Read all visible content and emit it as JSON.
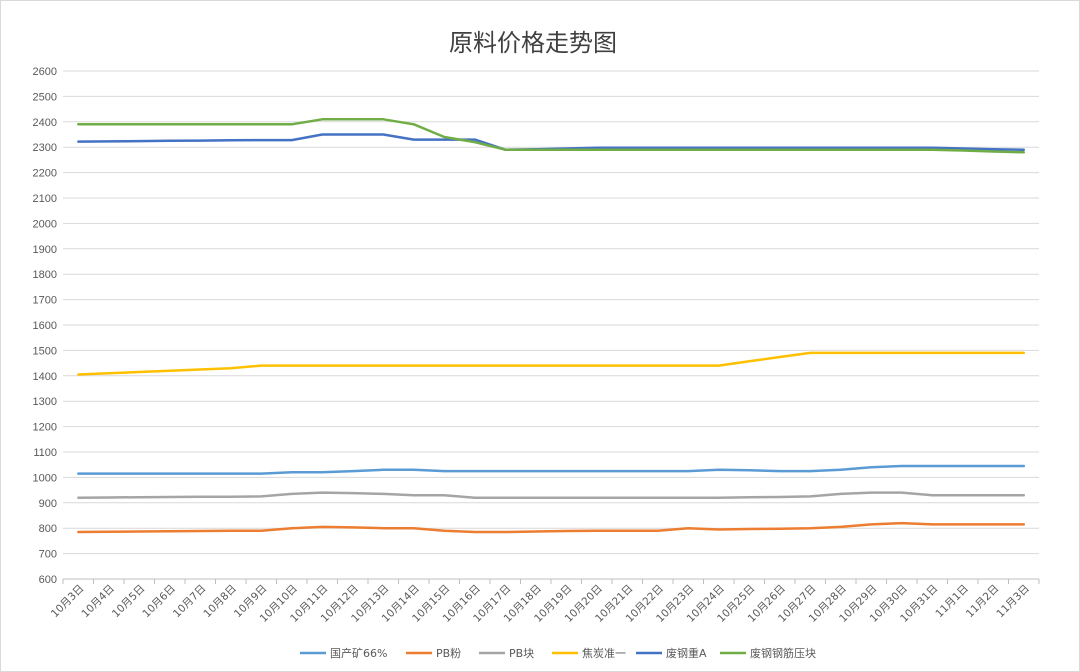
{
  "chart_data": {
    "type": "line",
    "title": "原料价格走势图",
    "ylim": [
      600,
      2600
    ],
    "yticks": [
      600,
      700,
      800,
      900,
      1000,
      1100,
      1200,
      1300,
      1400,
      1500,
      1600,
      1700,
      1800,
      1900,
      2000,
      2100,
      2200,
      2300,
      2400,
      2500,
      2600
    ],
    "grid": true,
    "legend": "bottom",
    "categories": [
      "10月3日",
      "10月4日",
      "10月5日",
      "10月6日",
      "10月7日",
      "10月8日",
      "10月9日",
      "10月10日",
      "10月11日",
      "10月12日",
      "10月13日",
      "10月14日",
      "10月15日",
      "10月16日",
      "10月17日",
      "10月18日",
      "10月19日",
      "10月20日",
      "10月21日",
      "10月22日",
      "10月23日",
      "10月24日",
      "10月25日",
      "10月26日",
      "10月27日",
      "10月28日",
      "10月29日",
      "10月30日",
      "10月31日",
      "11月1日",
      "11月2日",
      "11月3日"
    ],
    "series": [
      {
        "name": "国产矿66%",
        "color": "#5b9bd5",
        "values": [
          1015,
          1015,
          1015,
          1015,
          1015,
          1015,
          1015,
          1020,
          1020,
          1025,
          1030,
          1030,
          1025,
          1025,
          1025,
          1025,
          1025,
          1025,
          1025,
          1025,
          1025,
          1030,
          1028,
          1025,
          1025,
          1030,
          1040,
          1045,
          1045,
          1045,
          1045,
          1045
        ]
      },
      {
        "name": "PB粉",
        "color": "#ed7d31",
        "values": [
          785,
          786,
          787,
          788,
          789,
          790,
          790,
          800,
          805,
          803,
          800,
          800,
          790,
          785,
          785,
          787,
          789,
          790,
          790,
          790,
          800,
          795,
          797,
          798,
          800,
          805,
          815,
          820,
          815,
          815,
          815,
          815
        ]
      },
      {
        "name": "PB块",
        "color": "#a5a5a5",
        "values": [
          920,
          921,
          922,
          923,
          924,
          924,
          925,
          935,
          940,
          938,
          935,
          930,
          930,
          920,
          920,
          920,
          920,
          920,
          920,
          920,
          920,
          920,
          922,
          923,
          925,
          935,
          940,
          940,
          930,
          930,
          930,
          930
        ]
      },
      {
        "name": "焦炭准一",
        "color": "#ffc000",
        "values": [
          1405,
          1410,
          1415,
          1420,
          1425,
          1430,
          1440,
          1440,
          1440,
          1440,
          1440,
          1440,
          1440,
          1440,
          1440,
          1440,
          1440,
          1440,
          1440,
          1440,
          1440,
          1440,
          1457,
          1474,
          1490,
          1490,
          1490,
          1490,
          1490,
          1490,
          1490,
          1490
        ]
      },
      {
        "name": "废钢重A",
        "color": "#4472c4",
        "values": [
          2322,
          2323,
          2324,
          2325,
          2326,
          2327,
          2328,
          2328,
          2350,
          2350,
          2350,
          2330,
          2330,
          2330,
          2290,
          2292,
          2295,
          2298,
          2298,
          2298,
          2298,
          2298,
          2298,
          2298,
          2298,
          2298,
          2298,
          2298,
          2298,
          2295,
          2292,
          2290
        ]
      },
      {
        "name": "废钢钢筋压块",
        "color": "#70ad47",
        "values": [
          2390,
          2390,
          2390,
          2390,
          2390,
          2390,
          2390,
          2390,
          2410,
          2410,
          2410,
          2390,
          2340,
          2320,
          2290,
          2290,
          2290,
          2290,
          2290,
          2290,
          2290,
          2290,
          2290,
          2290,
          2290,
          2290,
          2290,
          2290,
          2290,
          2287,
          2283,
          2280
        ]
      }
    ]
  }
}
